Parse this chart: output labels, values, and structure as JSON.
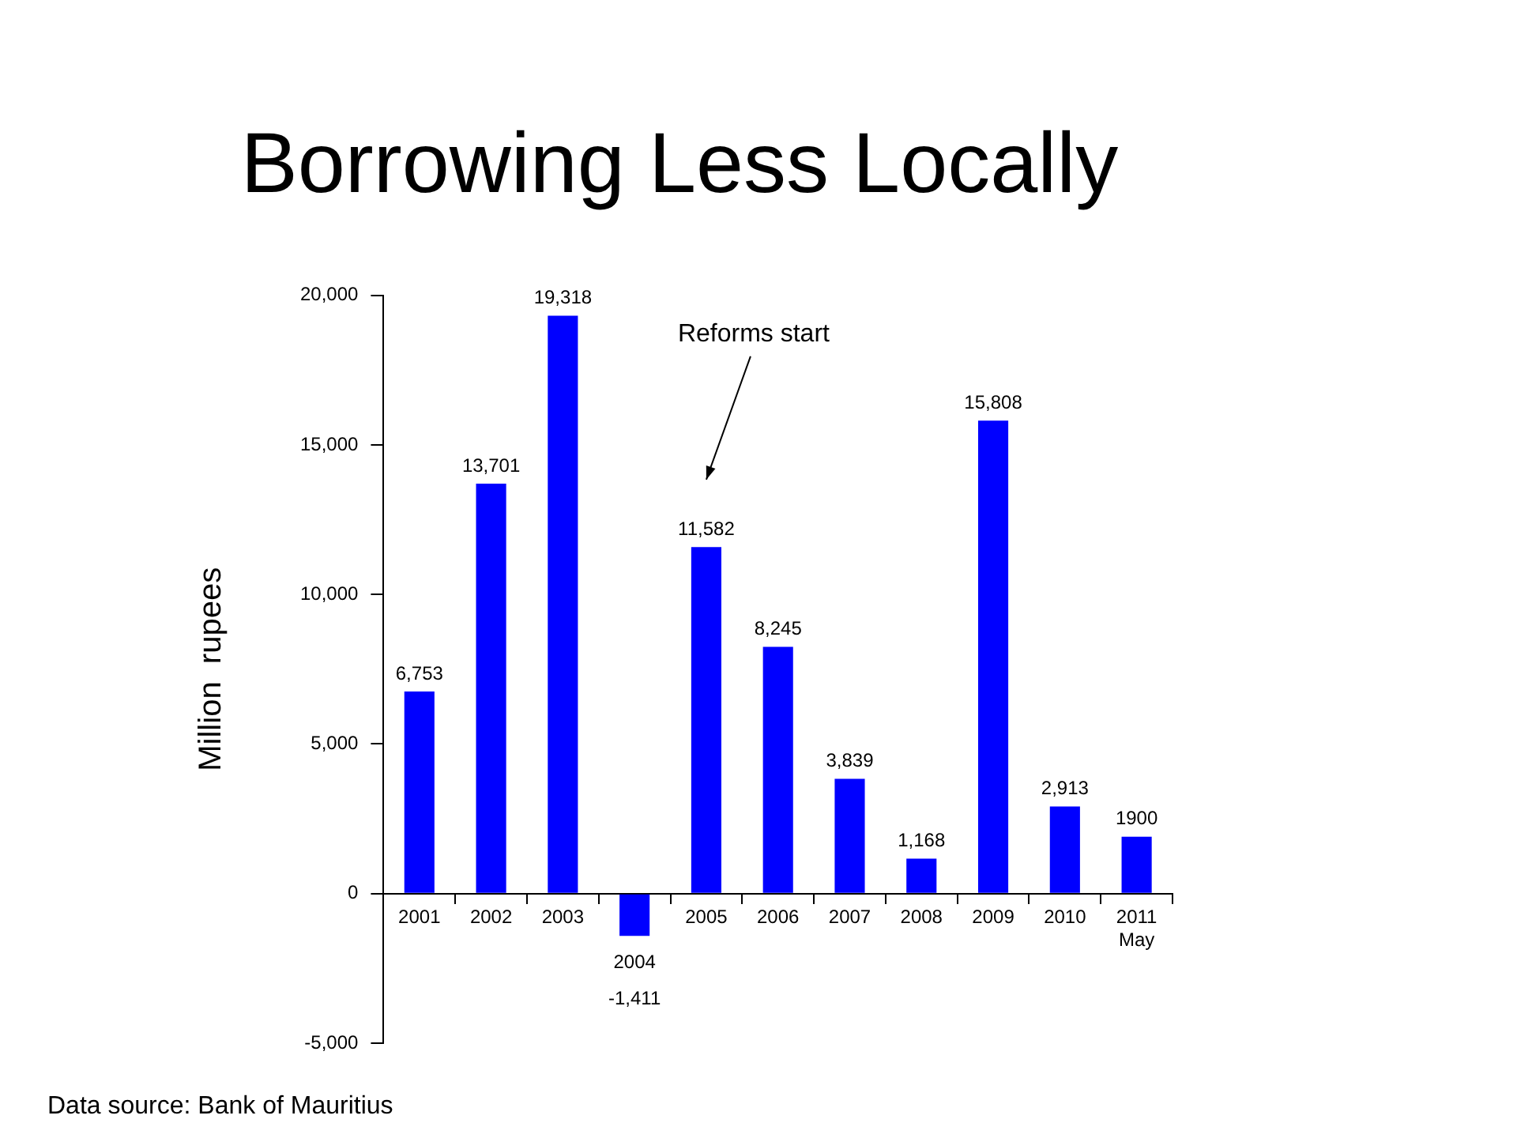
{
  "chart_data": {
    "type": "bar",
    "title": "Borrowing Less Locally",
    "ylabel": "Million  rupees",
    "categories": [
      "2001",
      "2002",
      "2003",
      "2004",
      "2005",
      "2006",
      "2007",
      "2008",
      "2009",
      "2010",
      "2011\nMay"
    ],
    "values": [
      6753,
      13701,
      19318,
      -1411,
      11582,
      8245,
      3839,
      1168,
      15808,
      2913,
      1900
    ],
    "value_labels": [
      "6,753",
      "13,701",
      "19,318",
      "-1,411",
      "11,582",
      "8,245",
      "3,839",
      "1,168",
      "15,808",
      "2,913",
      "1900"
    ],
    "color": "#0000ff",
    "ylim": [
      -5000,
      20000
    ],
    "yticks": [
      {
        "value": -5000,
        "label": "-5,000"
      },
      {
        "value": 0,
        "label": "0"
      },
      {
        "value": 5000,
        "label": "5,000"
      },
      {
        "value": 10000,
        "label": "10,000"
      },
      {
        "value": 15000,
        "label": "15,000"
      },
      {
        "value": 20000,
        "label": "20,000"
      }
    ],
    "annotations": [
      "Reforms start",
      "Data source: Bank of Mauritius"
    ]
  }
}
